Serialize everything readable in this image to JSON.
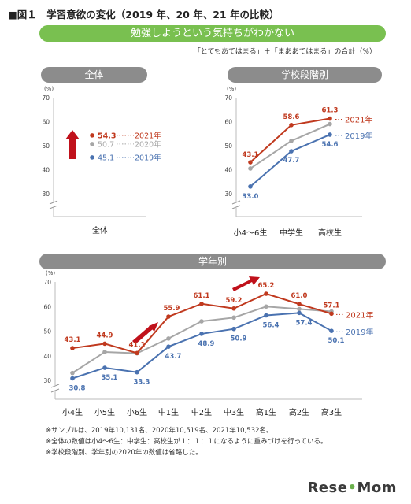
{
  "figure": {
    "title": "■図１　学習意欲の変化（2019 年、20 年、21 年の比較）",
    "banner": "勉強しようという気持ちがわかない",
    "note": "「とてもあてはまる」＋「まああてはまる」の合計（%）"
  },
  "colors": {
    "y2021": "#c0391e",
    "y2020": "#a6a6a6",
    "y2019": "#4a72b0",
    "arrow": "#c0111b",
    "pill": "#8c8c8c",
    "banner": "#79c050"
  },
  "chart_data": [
    {
      "type": "scatter",
      "title": "全体",
      "ylabel": "(%)",
      "ylim": [
        30,
        70
      ],
      "yticks": [
        30,
        40,
        50,
        60,
        70
      ],
      "categories": [
        "全体"
      ],
      "series": [
        {
          "name": "2021年",
          "values": [
            54.3
          ]
        },
        {
          "name": "2020年",
          "values": [
            50.7
          ]
        },
        {
          "name": "2019年",
          "values": [
            45.1
          ]
        }
      ]
    },
    {
      "type": "line",
      "title": "学校段階別",
      "ylabel": "(%)",
      "ylim": [
        30,
        70
      ],
      "yticks": [
        30,
        40,
        50,
        60,
        70
      ],
      "categories": [
        "小4～6生",
        "中学生",
        "高校生"
      ],
      "series": [
        {
          "name": "2021年",
          "values": [
            43.1,
            58.6,
            61.3
          ],
          "labels": [
            "43.1",
            "58.6",
            "61.3"
          ]
        },
        {
          "name": "2020年",
          "values": [
            40.5,
            52,
            59
          ],
          "labels": []
        },
        {
          "name": "2019年",
          "values": [
            33.0,
            47.7,
            54.6
          ],
          "labels": [
            "33.0",
            "47.7",
            "54.6"
          ]
        }
      ]
    },
    {
      "type": "line",
      "title": "学年別",
      "ylabel": "(%)",
      "ylim": [
        30,
        70
      ],
      "yticks": [
        30,
        40,
        50,
        60,
        70
      ],
      "categories": [
        "小4生",
        "小5生",
        "小6生",
        "中1生",
        "中2生",
        "中3生",
        "高1生",
        "高2生",
        "高3生"
      ],
      "series": [
        {
          "name": "2021年",
          "values": [
            43.1,
            44.9,
            41.1,
            55.9,
            61.1,
            59.2,
            65.2,
            61.0,
            57.1
          ],
          "labels": [
            "43.1",
            "44.9",
            "41.1",
            "55.9",
            "61.1",
            "59.2",
            "65.2",
            "61.0",
            "57.1"
          ]
        },
        {
          "name": "2020年",
          "values": [
            33,
            41.5,
            41,
            47,
            54,
            55.5,
            60,
            59,
            58
          ],
          "labels": []
        },
        {
          "name": "2019年",
          "values": [
            30.8,
            35.1,
            33.3,
            43.7,
            48.9,
            50.9,
            56.4,
            57.4,
            50.1
          ],
          "labels": [
            "30.8",
            "35.1",
            "33.3",
            "43.7",
            "48.9",
            "50.9",
            "56.4",
            "57.4",
            "50.1"
          ]
        }
      ]
    }
  ],
  "footnotes": [
    "※サンプルは、2019年10,131名、2020年10,519名、2021年10,532名。",
    "※全体の数値は小4～6生：中学生：高校生が１：１：１になるように重みづけを行っている。",
    "※学校段階別、学年別の2020年の数値は省略した。"
  ],
  "logo": {
    "left": "Rese",
    "sep": "•",
    "right": "Mom"
  }
}
